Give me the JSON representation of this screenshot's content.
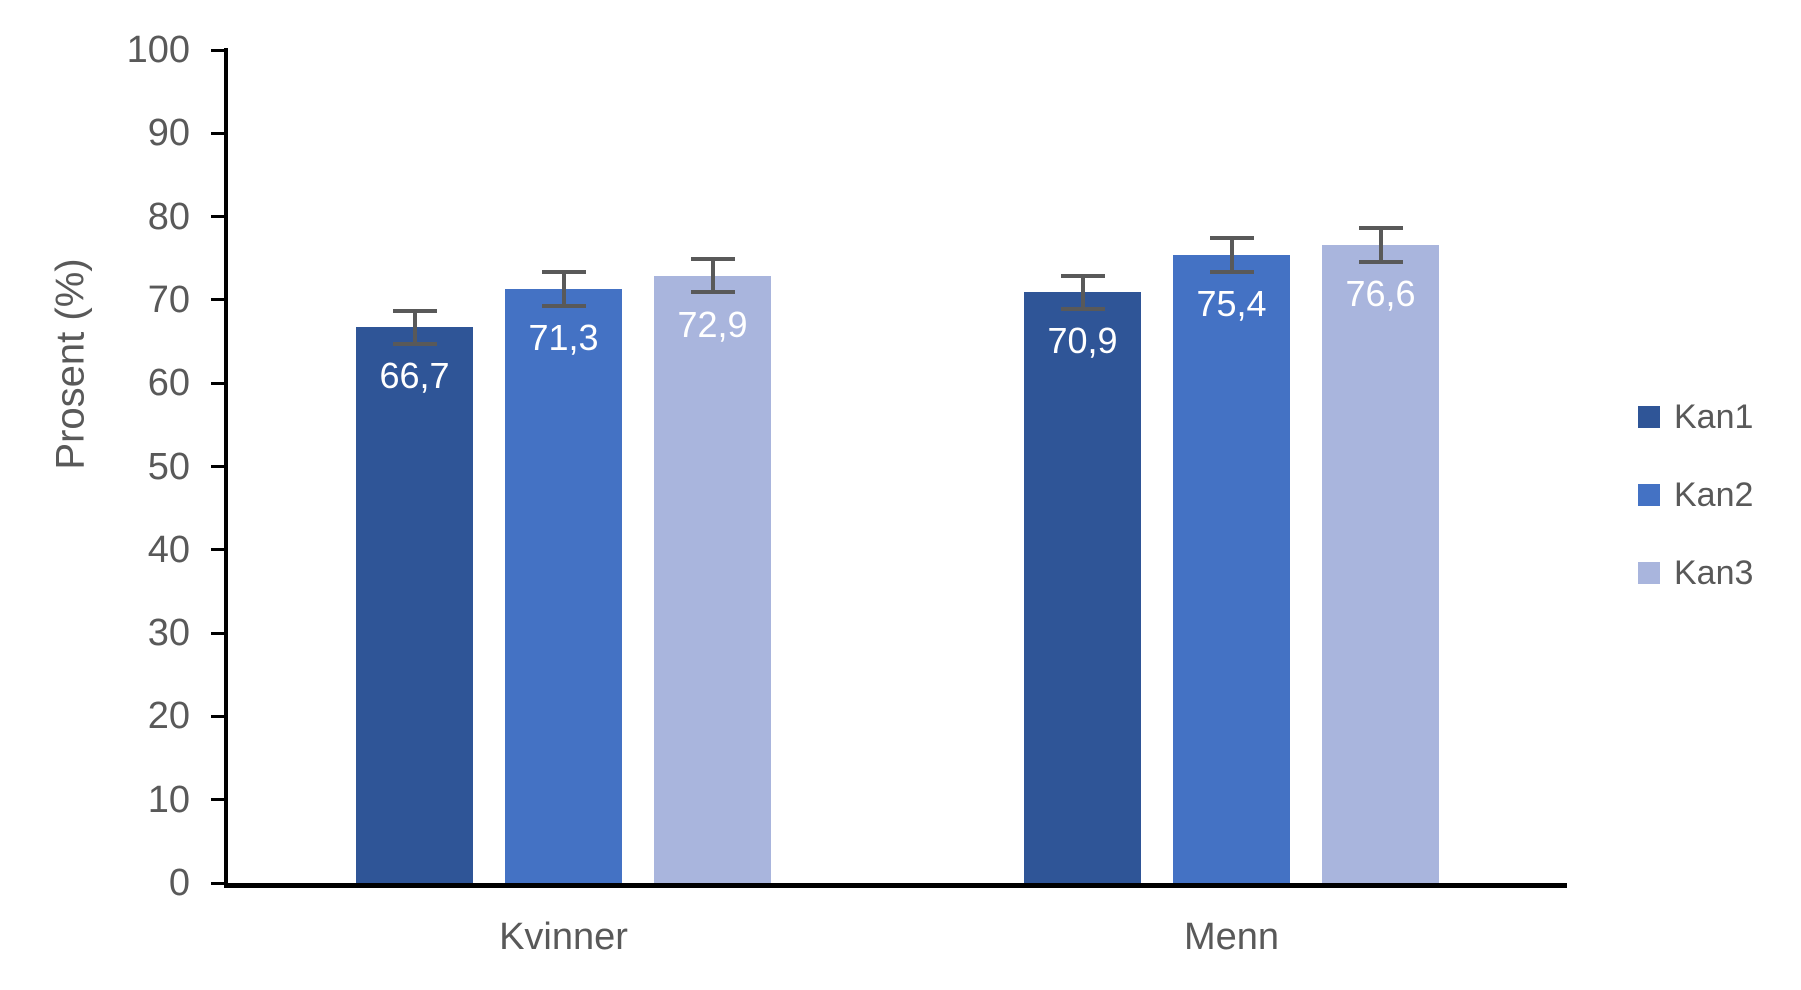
{
  "chart_data": {
    "type": "bar",
    "title": "",
    "ylabel": "Prosent (%)",
    "xlabel": "",
    "categories": [
      "Kvinner",
      "Menn"
    ],
    "series": [
      {
        "name": "Kan1",
        "color": "#2F5597",
        "values": [
          66.7,
          70.9
        ],
        "error": 2.0,
        "data_labels": [
          "66,7",
          "70,9"
        ]
      },
      {
        "name": "Kan2",
        "color": "#4472C4",
        "values": [
          71.3,
          75.4
        ],
        "error": 2.0,
        "data_labels": [
          "71,3",
          "75,4"
        ]
      },
      {
        "name": "Kan3",
        "color": "#A9B5DD",
        "values": [
          72.9,
          76.6
        ],
        "error": 2.0,
        "data_labels": [
          "72,9",
          "76,6"
        ]
      }
    ],
    "ylim": [
      0,
      100
    ],
    "ytick_values": [
      0,
      10,
      20,
      30,
      40,
      50,
      60,
      70,
      80,
      90,
      100
    ],
    "ytick_labels": [
      "0",
      "10",
      "20",
      "30",
      "40",
      "50",
      "60",
      "70",
      "80",
      "90",
      "100"
    ],
    "grid": false,
    "legend": {
      "position": "right",
      "entries": [
        "Kan1",
        "Kan2",
        "Kan3"
      ]
    },
    "colors": {
      "axis": "#000000",
      "text": "#595959",
      "error_bar": "#595959",
      "data_label": "#FFFFFF",
      "background": "#FFFFFF"
    }
  }
}
